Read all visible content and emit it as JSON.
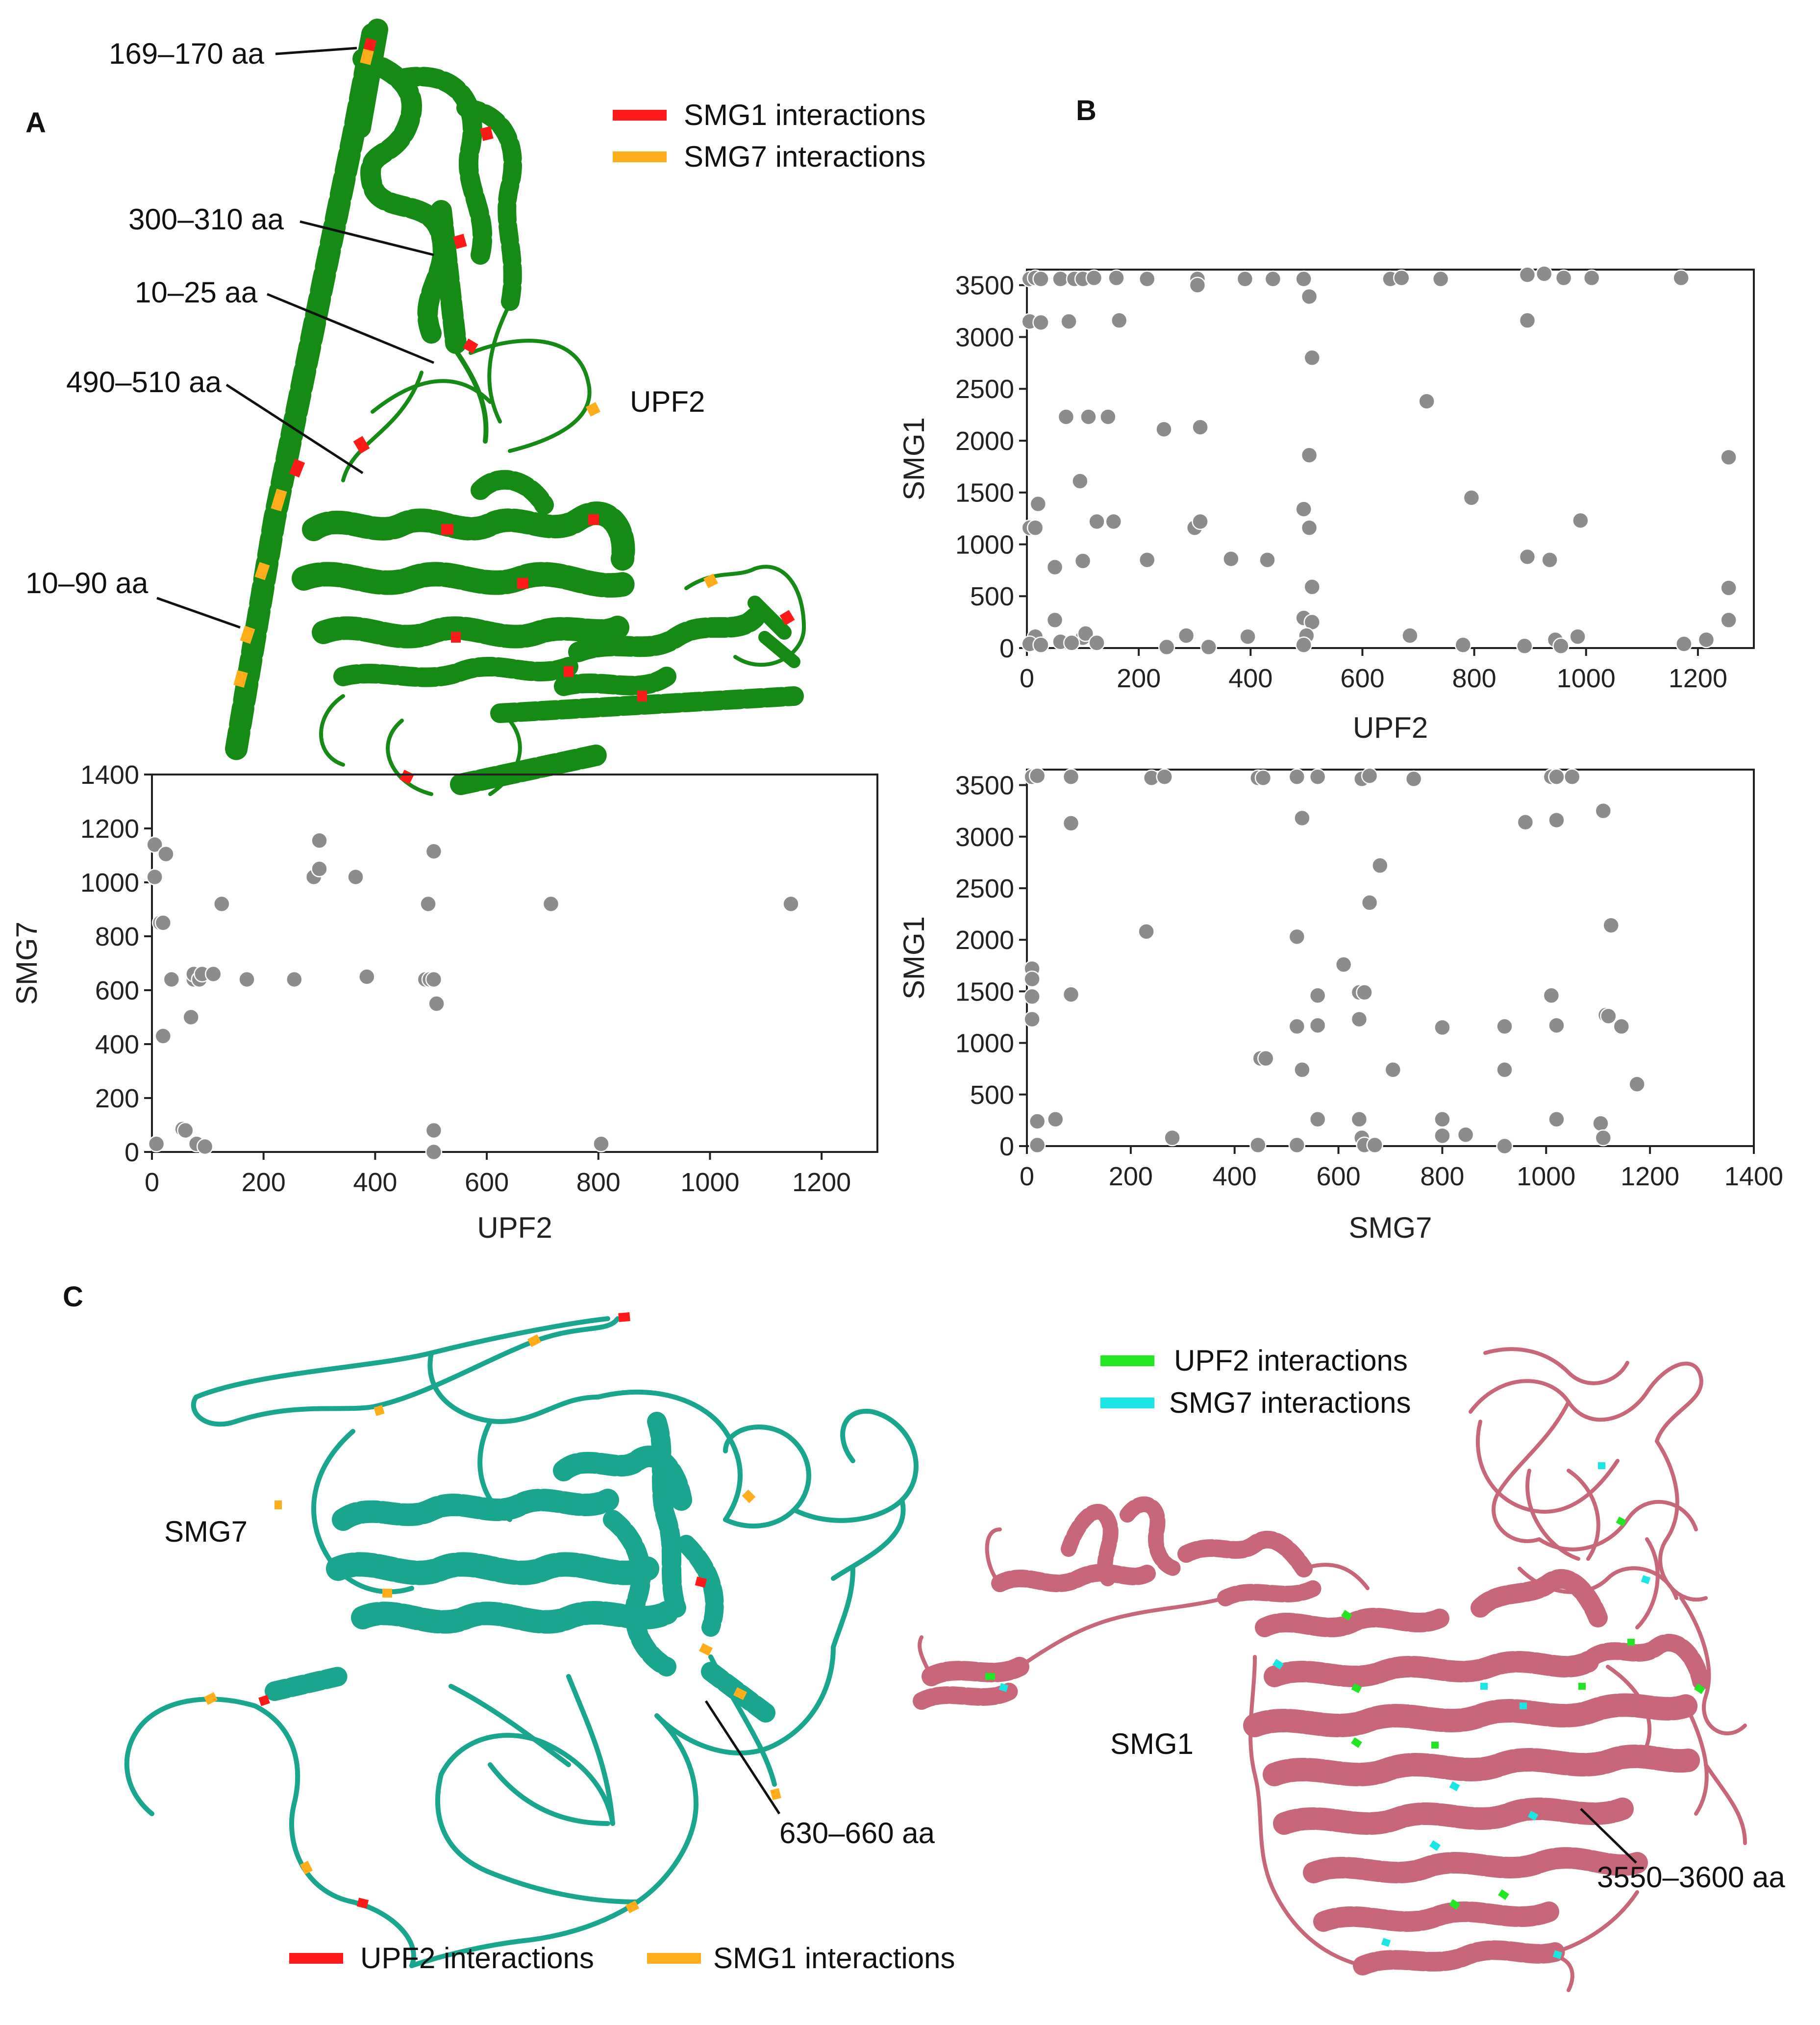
{
  "panels": {
    "A": {
      "letter": "A"
    },
    "B": {
      "letter": "B"
    },
    "C": {
      "letter": "C"
    }
  },
  "structures": {
    "upf2": {
      "name": "UPF2",
      "color": "#158a15",
      "annotations": [
        "169–170 aa",
        "300–310 aa",
        "10–25 aa",
        "490–510 aa",
        "10–90 aa"
      ],
      "legend": [
        {
          "label": "SMG1 interactions",
          "color": "#ff1a1a"
        },
        {
          "label": "SMG7 interactions",
          "color": "#ffad1a"
        }
      ]
    },
    "smg7": {
      "name": "SMG7",
      "color": "#1aa58e",
      "annotations": [
        "630–660 aa"
      ],
      "legend": [
        {
          "label": "UPF2 interactions",
          "color": "#ff1a1a"
        },
        {
          "label": "SMG1 interactions",
          "color": "#ffad1a"
        }
      ]
    },
    "smg1": {
      "name": "SMG1",
      "color": "#c8677a",
      "annotations": [
        "3550–3600 aa"
      ],
      "legend": [
        {
          "label": "UPF2 interactions",
          "color": "#22e622"
        },
        {
          "label": "SMG7 interactions",
          "color": "#1ae6e6"
        }
      ]
    }
  },
  "chart_data": [
    {
      "id": "A",
      "type": "scatter",
      "xlabel": "UPF2",
      "ylabel": "SMG7",
      "xlim": [
        0,
        1300
      ],
      "ylim": [
        0,
        1400
      ],
      "xticks": [
        0,
        200,
        400,
        600,
        800,
        1000,
        1200
      ],
      "yticks": [
        0,
        200,
        400,
        600,
        800,
        1000,
        1200,
        1400
      ],
      "marker_color": "#8c8c8c",
      "points": [
        [
          5,
          1140
        ],
        [
          5,
          1020
        ],
        [
          15,
          850
        ],
        [
          25,
          1105
        ],
        [
          20,
          850
        ],
        [
          8,
          30
        ],
        [
          20,
          430
        ],
        [
          35,
          640
        ],
        [
          55,
          85
        ],
        [
          60,
          80
        ],
        [
          70,
          500
        ],
        [
          75,
          640
        ],
        [
          75,
          660
        ],
        [
          85,
          640
        ],
        [
          90,
          660
        ],
        [
          110,
          660
        ],
        [
          80,
          30
        ],
        [
          95,
          20
        ],
        [
          125,
          920
        ],
        [
          170,
          640
        ],
        [
          255,
          640
        ],
        [
          290,
          1020
        ],
        [
          300,
          1050
        ],
        [
          300,
          1155
        ],
        [
          365,
          1020
        ],
        [
          385,
          650
        ],
        [
          490,
          640
        ],
        [
          495,
          920
        ],
        [
          498,
          640
        ],
        [
          505,
          640
        ],
        [
          505,
          1115
        ],
        [
          505,
          80
        ],
        [
          505,
          0
        ],
        [
          510,
          550
        ],
        [
          715,
          920
        ],
        [
          805,
          30
        ],
        [
          1145,
          920
        ]
      ]
    },
    {
      "id": "B-top",
      "type": "scatter",
      "xlabel": "UPF2",
      "ylabel": "SMG1",
      "xlim": [
        0,
        1300
      ],
      "ylim": [
        0,
        3650
      ],
      "xticks": [
        0,
        200,
        400,
        600,
        800,
        1000,
        1200
      ],
      "yticks": [
        0,
        500,
        1000,
        1500,
        2000,
        2500,
        3000,
        3500
      ],
      "marker_color": "#8c8c8c",
      "points": [
        [
          5,
          3560
        ],
        [
          15,
          3570
        ],
        [
          25,
          3560
        ],
        [
          60,
          3560
        ],
        [
          85,
          3560
        ],
        [
          100,
          3560
        ],
        [
          120,
          3570
        ],
        [
          160,
          3570
        ],
        [
          215,
          3560
        ],
        [
          305,
          3560
        ],
        [
          305,
          3500
        ],
        [
          390,
          3560
        ],
        [
          440,
          3560
        ],
        [
          495,
          3560
        ],
        [
          650,
          3560
        ],
        [
          670,
          3570
        ],
        [
          740,
          3560
        ],
        [
          895,
          3600
        ],
        [
          925,
          3610
        ],
        [
          960,
          3570
        ],
        [
          1010,
          3570
        ],
        [
          1170,
          3570
        ],
        [
          5,
          3150
        ],
        [
          25,
          3140
        ],
        [
          75,
          3150
        ],
        [
          165,
          3160
        ],
        [
          505,
          3390
        ],
        [
          895,
          3160
        ],
        [
          510,
          2800
        ],
        [
          70,
          2230
        ],
        [
          110,
          2230
        ],
        [
          145,
          2230
        ],
        [
          245,
          2110
        ],
        [
          310,
          2130
        ],
        [
          715,
          2380
        ],
        [
          505,
          1860
        ],
        [
          1255,
          1840
        ],
        [
          95,
          1610
        ],
        [
          20,
          1390
        ],
        [
          795,
          1450
        ],
        [
          5,
          1160
        ],
        [
          15,
          1160
        ],
        [
          125,
          1220
        ],
        [
          155,
          1220
        ],
        [
          300,
          1160
        ],
        [
          310,
          1220
        ],
        [
          495,
          1340
        ],
        [
          505,
          1160
        ],
        [
          990,
          1230
        ],
        [
          100,
          840
        ],
        [
          215,
          850
        ],
        [
          365,
          860
        ],
        [
          430,
          850
        ],
        [
          895,
          880
        ],
        [
          935,
          850
        ],
        [
          50,
          780
        ],
        [
          510,
          590
        ],
        [
          1255,
          580
        ],
        [
          50,
          270
        ],
        [
          495,
          290
        ],
        [
          510,
          250
        ],
        [
          1255,
          270
        ],
        [
          15,
          110
        ],
        [
          60,
          60
        ],
        [
          100,
          100
        ],
        [
          105,
          140
        ],
        [
          125,
          50
        ],
        [
          285,
          120
        ],
        [
          395,
          110
        ],
        [
          500,
          120
        ],
        [
          685,
          120
        ],
        [
          945,
          80
        ],
        [
          985,
          110
        ],
        [
          5,
          40
        ],
        [
          25,
          30
        ],
        [
          80,
          50
        ],
        [
          250,
          10
        ],
        [
          325,
          10
        ],
        [
          495,
          30
        ],
        [
          780,
          30
        ],
        [
          890,
          20
        ],
        [
          955,
          20
        ],
        [
          1175,
          40
        ],
        [
          1215,
          80
        ]
      ]
    },
    {
      "id": "B-bottom",
      "type": "scatter",
      "xlabel": "SMG7",
      "ylabel": "SMG1",
      "xlim": [
        0,
        1400
      ],
      "ylim": [
        0,
        3650
      ],
      "xticks": [
        0,
        200,
        400,
        600,
        800,
        1000,
        1200,
        1400
      ],
      "yticks": [
        0,
        500,
        1000,
        1500,
        2000,
        2500,
        3000,
        3500
      ],
      "marker_color": "#8c8c8c",
      "points": [
        [
          10,
          3580
        ],
        [
          20,
          3590
        ],
        [
          85,
          3580
        ],
        [
          240,
          3570
        ],
        [
          265,
          3580
        ],
        [
          445,
          3570
        ],
        [
          455,
          3570
        ],
        [
          520,
          3580
        ],
        [
          560,
          3580
        ],
        [
          645,
          3560
        ],
        [
          660,
          3590
        ],
        [
          745,
          3560
        ],
        [
          1010,
          3580
        ],
        [
          1020,
          3580
        ],
        [
          1050,
          3580
        ],
        [
          85,
          3130
        ],
        [
          530,
          3180
        ],
        [
          960,
          3140
        ],
        [
          1020,
          3160
        ],
        [
          1110,
          3250
        ],
        [
          680,
          2720
        ],
        [
          660,
          2360
        ],
        [
          230,
          2080
        ],
        [
          520,
          2030
        ],
        [
          1125,
          2140
        ],
        [
          610,
          1760
        ],
        [
          10,
          1720
        ],
        [
          10,
          1620
        ],
        [
          10,
          1450
        ],
        [
          85,
          1470
        ],
        [
          560,
          1460
        ],
        [
          640,
          1490
        ],
        [
          650,
          1490
        ],
        [
          1010,
          1460
        ],
        [
          10,
          1230
        ],
        [
          520,
          1160
        ],
        [
          560,
          1170
        ],
        [
          640,
          1230
        ],
        [
          800,
          1150
        ],
        [
          920,
          1160
        ],
        [
          1020,
          1170
        ],
        [
          1115,
          1270
        ],
        [
          1120,
          1260
        ],
        [
          1145,
          1160
        ],
        [
          450,
          850
        ],
        [
          460,
          850
        ],
        [
          530,
          740
        ],
        [
          705,
          740
        ],
        [
          920,
          740
        ],
        [
          1175,
          600
        ],
        [
          20,
          240
        ],
        [
          55,
          260
        ],
        [
          560,
          260
        ],
        [
          640,
          260
        ],
        [
          800,
          260
        ],
        [
          1020,
          260
        ],
        [
          1105,
          220
        ],
        [
          280,
          80
        ],
        [
          645,
          80
        ],
        [
          800,
          100
        ],
        [
          845,
          110
        ],
        [
          1110,
          80
        ],
        [
          20,
          10
        ],
        [
          445,
          10
        ],
        [
          520,
          10
        ],
        [
          650,
          10
        ],
        [
          670,
          10
        ],
        [
          920,
          0
        ]
      ]
    }
  ]
}
